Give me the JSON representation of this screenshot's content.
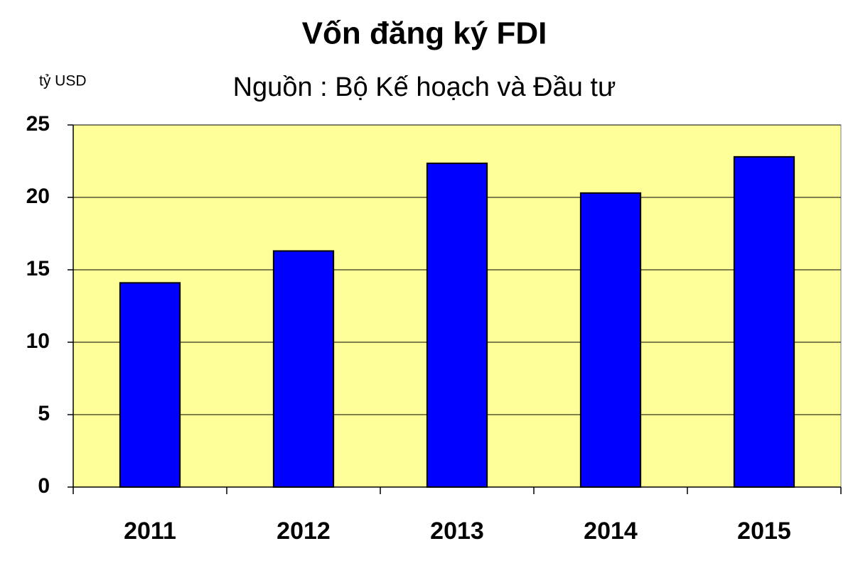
{
  "chart_data": {
    "type": "bar",
    "title": "Vốn đăng ký FDI",
    "subtitle": "Nguồn : Bộ Kế hoạch và Đầu tư",
    "ylabel": "tỷ USD",
    "categories": [
      "2011",
      "2012",
      "2013",
      "2014",
      "2015"
    ],
    "values": [
      14.1,
      16.3,
      22.35,
      20.3,
      22.8
    ],
    "color": "#0000ff",
    "ylim": [
      0,
      25
    ],
    "yticks": [
      0,
      5,
      10,
      15,
      20,
      25
    ],
    "grid": true,
    "background": "#ffff99"
  }
}
